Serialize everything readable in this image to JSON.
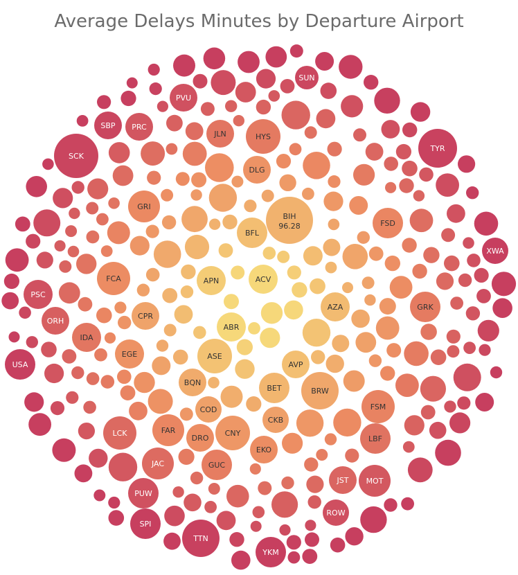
{
  "chart_data": {
    "type": "bubble",
    "title": "Average Delays Minutes by Departure Airport",
    "measure": "Average Delays Minutes",
    "dimension": "Departure Airport",
    "color_scale": {
      "low": "#f6d87a",
      "mid": "#ec8a62",
      "high": "#c73f5f"
    },
    "labeled_bubbles": [
      {
        "code": "BIH",
        "value": 96.28
      },
      {
        "code": "SUN"
      },
      {
        "code": "PVU"
      },
      {
        "code": "SBP"
      },
      {
        "code": "PRC"
      },
      {
        "code": "JLN"
      },
      {
        "code": "HYS"
      },
      {
        "code": "TYR"
      },
      {
        "code": "SCK"
      },
      {
        "code": "DLG"
      },
      {
        "code": "GRI"
      },
      {
        "code": "FSD"
      },
      {
        "code": "BFL"
      },
      {
        "code": "XWA"
      },
      {
        "code": "FCA"
      },
      {
        "code": "APN"
      },
      {
        "code": "ACV"
      },
      {
        "code": "PSC"
      },
      {
        "code": "AZA"
      },
      {
        "code": "GRK"
      },
      {
        "code": "CPR"
      },
      {
        "code": "ORH"
      },
      {
        "code": "ABR"
      },
      {
        "code": "IDA"
      },
      {
        "code": "EGE"
      },
      {
        "code": "ASE"
      },
      {
        "code": "AVP"
      },
      {
        "code": "USA"
      },
      {
        "code": "BQN"
      },
      {
        "code": "BET"
      },
      {
        "code": "BRW"
      },
      {
        "code": "FSM"
      },
      {
        "code": "COD"
      },
      {
        "code": "CKB"
      },
      {
        "code": "LCK"
      },
      {
        "code": "FAR"
      },
      {
        "code": "DRO"
      },
      {
        "code": "CNY"
      },
      {
        "code": "LBF"
      },
      {
        "code": "EKO"
      },
      {
        "code": "JAC"
      },
      {
        "code": "GUC"
      },
      {
        "code": "JST"
      },
      {
        "code": "MOT"
      },
      {
        "code": "PUW"
      },
      {
        "code": "ROW"
      },
      {
        "code": "SPI"
      },
      {
        "code": "TTN"
      },
      {
        "code": "YKM"
      }
    ]
  }
}
